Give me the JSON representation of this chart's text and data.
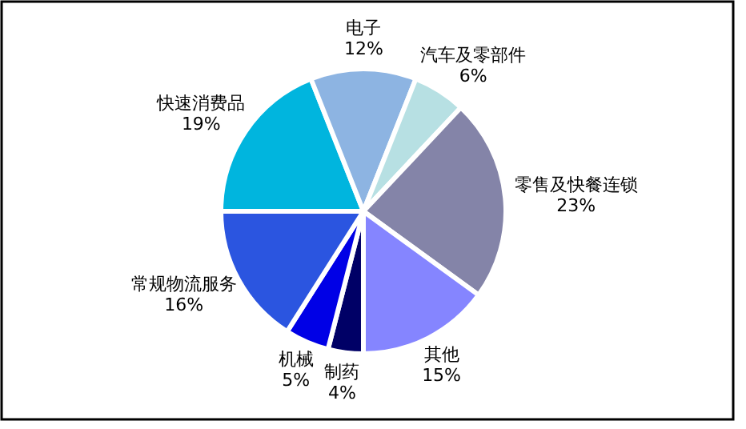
{
  "chart_data": {
    "type": "pie",
    "categories": [
      "制药",
      "机械",
      "常规物流服务",
      "快速消费品",
      "电子",
      "汽车及零部件",
      "零售及快餐连锁",
      "其他"
    ],
    "values": [
      4,
      5,
      16,
      19,
      12,
      6,
      23,
      15
    ],
    "colors": [
      "#000066",
      "#0000e6",
      "#2b55e0",
      "#00b5de",
      "#8db4e2",
      "#b7e0e3",
      "#8484a8",
      "#8585ff"
    ],
    "value_labels": [
      "4%",
      "5%",
      "16%",
      "19%",
      "12%",
      "6%",
      "23%",
      "15%"
    ]
  }
}
